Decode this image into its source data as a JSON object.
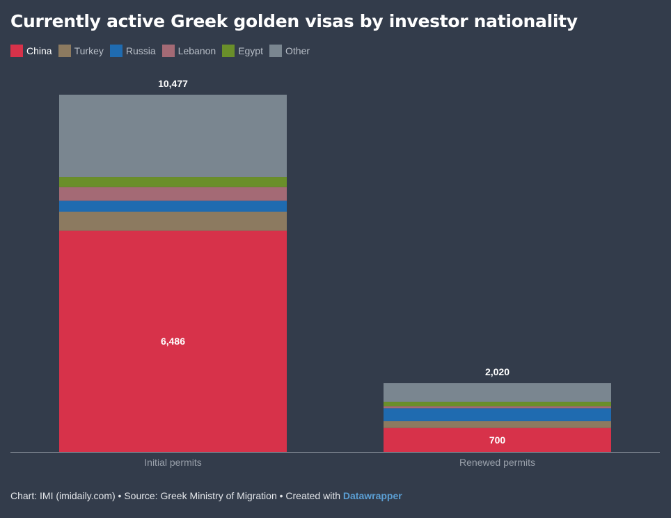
{
  "title": "Currently active Greek golden visas by investor nationality",
  "footer": {
    "text": "Chart: IMI (imidaily.com) • Source: Greek Ministry of Migration • Created with ",
    "link": "Datawrapper"
  },
  "colors": {
    "background": "#333c4b",
    "axis": "#9aa1ab",
    "tick_label": "#9aa1ab",
    "value_label": "#ffffff"
  },
  "chart_data": {
    "type": "bar",
    "stacked": true,
    "title": "Currently active Greek golden visas by investor nationality",
    "categories": [
      "Initial permits",
      "Renewed permits"
    ],
    "totals": [
      10477,
      2020
    ],
    "total_labels": [
      "10,477",
      "2,020"
    ],
    "series": [
      {
        "name": "China",
        "color": "#d7324a",
        "values": [
          6486,
          700
        ],
        "labels": [
          "6,486",
          "700"
        ]
      },
      {
        "name": "Turkey",
        "color": "#8c7a60",
        "values": [
          560,
          200
        ],
        "labels": [
          "",
          ""
        ]
      },
      {
        "name": "Russia",
        "color": "#1f6bb0",
        "values": [
          320,
          380
        ],
        "labels": [
          "",
          ""
        ]
      },
      {
        "name": "Lebanon",
        "color": "#a46a75",
        "values": [
          400,
          60
        ],
        "labels": [
          "",
          ""
        ]
      },
      {
        "name": "Egypt",
        "color": "#6a8f2a",
        "values": [
          300,
          130
        ],
        "labels": [
          "",
          ""
        ]
      },
      {
        "name": "Other",
        "color": "#7a8690",
        "values": [
          2411,
          550
        ],
        "labels": [
          "",
          ""
        ]
      }
    ],
    "ylim": [
      0,
      10477
    ],
    "legend_position": "top-left",
    "grid": false
  }
}
